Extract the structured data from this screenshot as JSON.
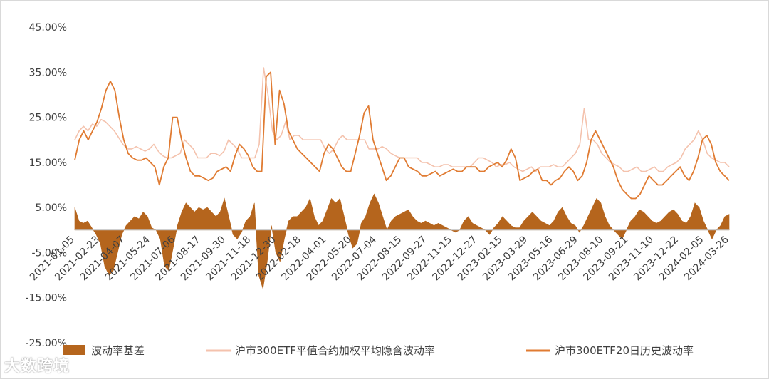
{
  "colors": {
    "basis": "#b5651d",
    "implied": "#f4c2ad",
    "historical": "#e07b32",
    "axis_text": "#404040",
    "axis_line": "#bfbfbf"
  },
  "watermark": "大数跨境",
  "chart_data": {
    "type": "area",
    "title": "",
    "xlabel": "",
    "ylabel": "",
    "ylim": [
      -0.25,
      0.45
    ],
    "yticks": [
      0.45,
      0.35,
      0.25,
      0.15,
      0.05,
      -0.05,
      -0.15,
      -0.25
    ],
    "ytick_labels": [
      "45.00%",
      "35.00%",
      "25.00%",
      "15.00%",
      "5.00%",
      "-5.00%",
      "-15.00%",
      "-25.00%"
    ],
    "xtick_labels": [
      "2021-01-05",
      "2021-02-23",
      "2021-04-07",
      "2021-05-24",
      "2021-07-06",
      "2021-08-17",
      "2021-09-30",
      "2021-11-18",
      "2021-12-30",
      "2022-02-18",
      "2022-04-01",
      "2022-05-20",
      "2022-07-04",
      "2022-08-15",
      "2022-09-27",
      "2022-11-15",
      "2022-12-27",
      "2023-02-15",
      "2023-03-29",
      "2023-05-16",
      "2023-06-29",
      "2023-08-10",
      "2023-09-21",
      "2023-11-10",
      "2023-12-22",
      "2024-02-05",
      "2024-03-26"
    ],
    "legend_position": "bottom",
    "grid": false,
    "series": [
      {
        "name": "波动率基差",
        "kind": "area",
        "values": [
          0.05,
          0.02,
          0.015,
          0.02,
          0.005,
          -0.01,
          -0.03,
          -0.08,
          -0.1,
          -0.09,
          -0.05,
          -0.01,
          0.01,
          0.02,
          0.03,
          0.025,
          0.04,
          0.03,
          0.005,
          0.0,
          -0.02,
          -0.08,
          -0.09,
          -0.04,
          0.01,
          0.04,
          0.06,
          0.05,
          0.04,
          0.05,
          0.045,
          0.05,
          0.04,
          0.03,
          0.04,
          0.07,
          0.03,
          -0.01,
          -0.02,
          -0.005,
          0.02,
          0.03,
          0.06,
          -0.1,
          -0.13,
          -0.07,
          0.01,
          -0.05,
          -0.07,
          -0.02,
          0.02,
          0.03,
          0.03,
          0.04,
          0.05,
          0.07,
          0.03,
          0.01,
          0.02,
          0.045,
          0.07,
          0.06,
          0.07,
          0.03,
          -0.01,
          -0.04,
          -0.03,
          0.015,
          0.03,
          0.06,
          0.08,
          0.06,
          0.03,
          0.0,
          0.02,
          0.03,
          0.035,
          0.04,
          0.045,
          0.03,
          0.02,
          0.015,
          0.02,
          0.015,
          0.01,
          0.015,
          0.01,
          0.005,
          0.0,
          -0.005,
          0.0,
          0.02,
          0.03,
          0.015,
          0.01,
          0.005,
          0.0,
          -0.01,
          0.005,
          0.015,
          0.03,
          0.02,
          0.01,
          0.005,
          0.005,
          0.02,
          0.03,
          0.04,
          0.03,
          0.02,
          0.015,
          0.01,
          0.02,
          0.04,
          0.05,
          0.03,
          0.015,
          0.01,
          -0.005,
          0.01,
          0.03,
          0.05,
          0.07,
          0.06,
          0.03,
          0.01,
          0.0,
          -0.01,
          -0.02,
          0.0,
          0.02,
          0.03,
          0.045,
          0.04,
          0.03,
          0.02,
          0.015,
          0.02,
          0.03,
          0.04,
          0.045,
          0.035,
          0.02,
          0.015,
          0.03,
          0.06,
          0.05,
          0.02,
          0.0,
          -0.02,
          0.0,
          0.01,
          0.03,
          0.035
        ],
        "x_start": "2021-01-05",
        "x_end": "2024-03-26"
      },
      {
        "name": "沪市300ETF平值合约加权平均隐含波动率",
        "kind": "line",
        "values": [
          0.2,
          0.22,
          0.23,
          0.22,
          0.235,
          0.23,
          0.245,
          0.24,
          0.23,
          0.22,
          0.205,
          0.19,
          0.18,
          0.18,
          0.185,
          0.18,
          0.175,
          0.18,
          0.19,
          0.175,
          0.165,
          0.16,
          0.16,
          0.165,
          0.17,
          0.2,
          0.19,
          0.18,
          0.16,
          0.16,
          0.16,
          0.17,
          0.17,
          0.165,
          0.175,
          0.2,
          0.19,
          0.18,
          0.16,
          0.16,
          0.16,
          0.16,
          0.19,
          0.36,
          0.3,
          0.22,
          0.2,
          0.21,
          0.24,
          0.2,
          0.21,
          0.21,
          0.2,
          0.2,
          0.2,
          0.2,
          0.2,
          0.18,
          0.17,
          0.18,
          0.2,
          0.21,
          0.2,
          0.2,
          0.2,
          0.2,
          0.2,
          0.18,
          0.18,
          0.18,
          0.185,
          0.18,
          0.17,
          0.165,
          0.16,
          0.16,
          0.16,
          0.16,
          0.16,
          0.15,
          0.15,
          0.145,
          0.14,
          0.14,
          0.145,
          0.145,
          0.14,
          0.14,
          0.14,
          0.14,
          0.14,
          0.15,
          0.16,
          0.16,
          0.155,
          0.15,
          0.14,
          0.145,
          0.145,
          0.15,
          0.14,
          0.135,
          0.13,
          0.135,
          0.14,
          0.13,
          0.14,
          0.14,
          0.14,
          0.145,
          0.14,
          0.14,
          0.15,
          0.16,
          0.17,
          0.19,
          0.27,
          0.2,
          0.2,
          0.19,
          0.17,
          0.16,
          0.15,
          0.145,
          0.14,
          0.13,
          0.13,
          0.135,
          0.14,
          0.13,
          0.13,
          0.135,
          0.14,
          0.13,
          0.13,
          0.14,
          0.145,
          0.15,
          0.16,
          0.18,
          0.19,
          0.2,
          0.22,
          0.2,
          0.17,
          0.16,
          0.155,
          0.15,
          0.15,
          0.14
        ],
        "x_start": "2021-01-05",
        "x_end": "2024-03-26"
      },
      {
        "name": "沪市300ETF20日历史波动率",
        "kind": "line",
        "values": [
          0.155,
          0.2,
          0.22,
          0.2,
          0.22,
          0.24,
          0.27,
          0.31,
          0.33,
          0.31,
          0.25,
          0.2,
          0.17,
          0.16,
          0.155,
          0.155,
          0.16,
          0.15,
          0.14,
          0.1,
          0.14,
          0.16,
          0.25,
          0.25,
          0.2,
          0.16,
          0.13,
          0.12,
          0.12,
          0.115,
          0.11,
          0.115,
          0.13,
          0.135,
          0.14,
          0.13,
          0.165,
          0.19,
          0.18,
          0.165,
          0.14,
          0.13,
          0.13,
          0.34,
          0.35,
          0.19,
          0.31,
          0.28,
          0.22,
          0.2,
          0.18,
          0.17,
          0.16,
          0.15,
          0.14,
          0.13,
          0.17,
          0.19,
          0.18,
          0.16,
          0.14,
          0.13,
          0.13,
          0.17,
          0.21,
          0.26,
          0.275,
          0.2,
          0.17,
          0.14,
          0.11,
          0.12,
          0.14,
          0.16,
          0.16,
          0.14,
          0.135,
          0.13,
          0.12,
          0.12,
          0.125,
          0.13,
          0.12,
          0.125,
          0.13,
          0.135,
          0.13,
          0.13,
          0.14,
          0.14,
          0.14,
          0.13,
          0.13,
          0.14,
          0.145,
          0.15,
          0.14,
          0.155,
          0.18,
          0.16,
          0.11,
          0.115,
          0.12,
          0.13,
          0.135,
          0.11,
          0.11,
          0.1,
          0.11,
          0.115,
          0.13,
          0.14,
          0.13,
          0.11,
          0.12,
          0.15,
          0.2,
          0.22,
          0.2,
          0.18,
          0.16,
          0.14,
          0.11,
          0.09,
          0.08,
          0.07,
          0.07,
          0.08,
          0.1,
          0.12,
          0.11,
          0.1,
          0.1,
          0.11,
          0.12,
          0.13,
          0.14,
          0.12,
          0.11,
          0.13,
          0.16,
          0.2,
          0.21,
          0.19,
          0.15,
          0.13,
          0.12,
          0.11
        ],
        "x_start": "2021-01-05",
        "x_end": "2024-03-26"
      }
    ]
  }
}
